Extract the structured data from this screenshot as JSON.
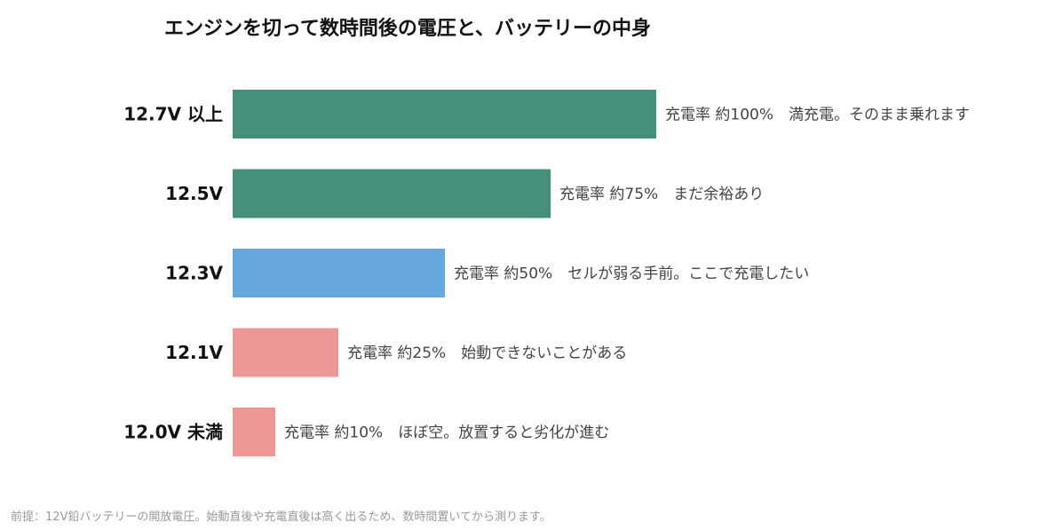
{
  "title": "エンジンを切って数時間後の電圧と、バッテリーの中身",
  "footnote": "前提：12V鉛バッテリーの開放電圧。始動直後や充電直後は高く出るため、数時間置いてから測ります。",
  "chart_data": {
    "type": "bar",
    "orientation": "horizontal",
    "title": "エンジンを切って数時間後の電圧と、バッテリーの中身",
    "xlabel": "",
    "ylabel": "",
    "xlim": [
      0,
      100
    ],
    "grid": false,
    "legend": "none",
    "categories": [
      "12.7V 以上",
      "12.5V",
      "12.3V",
      "12.1V",
      "12.0V 未満"
    ],
    "values": [
      100,
      75,
      50,
      25,
      10
    ],
    "bar_colors": [
      "#458f7b",
      "#458f7b",
      "#66a7df",
      "#ee9797",
      "#ee9797"
    ],
    "data_labels": [
      "充電率 約100%　満充電。そのまま乗れます",
      "充電率 約75%　まだ余裕あり",
      "充電率 約50%　セルが弱る手前。ここで充電したい",
      "充電率 約25%　始動できないことがある",
      "充電率 約10%　ほぼ空。放置すると劣化が進む"
    ]
  }
}
